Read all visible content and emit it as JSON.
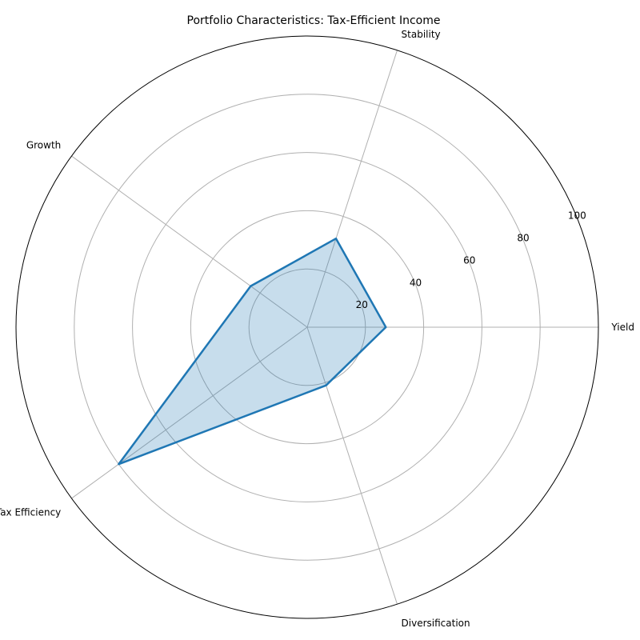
{
  "chart_data": {
    "type": "radar",
    "title": "Portfolio Characteristics: Tax-Efficient Income",
    "categories": [
      "Yield",
      "Stability",
      "Growth",
      "Tax Efficiency",
      "Diversification"
    ],
    "series": [
      {
        "values": [
          27,
          32,
          24,
          80,
          21
        ]
      }
    ],
    "rlim": [
      0,
      100
    ],
    "rticks": [
      20,
      40,
      60,
      80,
      100
    ],
    "rtick_labels": [
      "20",
      "40",
      "60",
      "80",
      "100"
    ],
    "grid": true,
    "colors": {
      "line": "#1f77b4",
      "fill": "#1f77b4",
      "grid": "#b0b0b0"
    }
  }
}
